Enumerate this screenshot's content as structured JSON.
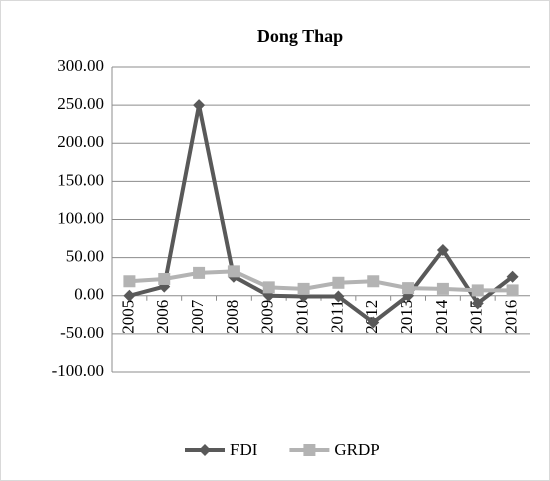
{
  "chart_data": {
    "type": "line",
    "title": "Dong Thap",
    "categories": [
      "2005",
      "2006",
      "2007",
      "2008",
      "2009",
      "2010",
      "2011",
      "2012",
      "2013",
      "2014",
      "2015",
      "2016"
    ],
    "series": [
      {
        "name": "FDI",
        "color": "#595959",
        "marker": "diamond",
        "values": [
          0,
          12,
          250,
          25,
          0,
          -1,
          -1,
          -35,
          0,
          60,
          -10,
          25
        ]
      },
      {
        "name": "GRDP",
        "color": "#b3b3b3",
        "marker": "square",
        "values": [
          19,
          22,
          30,
          32,
          11,
          9,
          17,
          19,
          10,
          9,
          7,
          7
        ]
      }
    ],
    "ylim": [
      -100,
      300
    ],
    "yticks": [
      {
        "value": -100,
        "label": "-100.00"
      },
      {
        "value": -50,
        "label": "-50.00"
      },
      {
        "value": 0,
        "label": "0.00"
      },
      {
        "value": 50,
        "label": "50.00"
      },
      {
        "value": 100,
        "label": "100.00"
      },
      {
        "value": 150,
        "label": "150.00"
      },
      {
        "value": 200,
        "label": "200.00"
      },
      {
        "value": 250,
        "label": "250.00"
      },
      {
        "value": 300,
        "label": "300.00"
      }
    ],
    "grid": true,
    "legend": "bottom"
  }
}
